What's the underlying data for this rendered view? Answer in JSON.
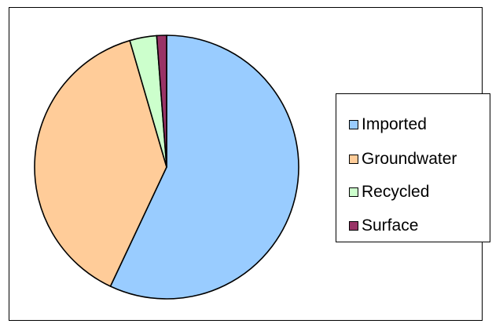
{
  "chart_data": {
    "type": "pie",
    "title": "",
    "slices": [
      {
        "label": "Imported",
        "value": 57.0,
        "color": "#99ccff"
      },
      {
        "label": "Groundwater",
        "value": 38.5,
        "color": "#ffcc99"
      },
      {
        "label": "Recycled",
        "value": 3.3,
        "color": "#ccffcc"
      },
      {
        "label": "Surface",
        "value": 1.2,
        "color": "#993366"
      }
    ],
    "start_angle_deg": 0,
    "direction": "clockwise",
    "legend_position": "right"
  }
}
